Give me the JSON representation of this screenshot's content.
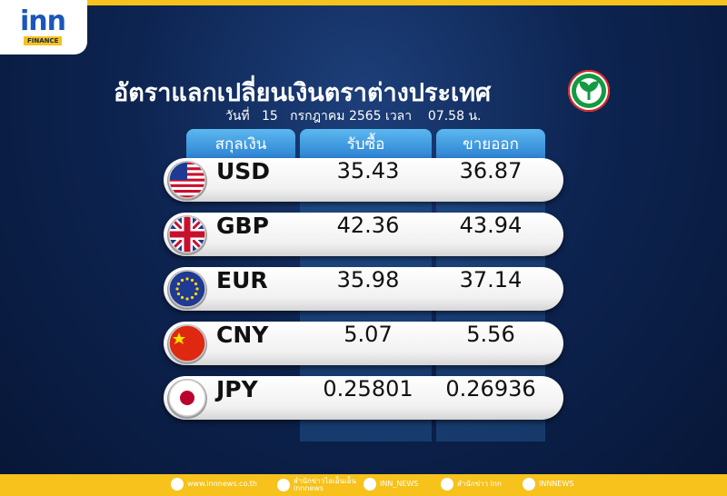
{
  "header": {
    "logo": "inn",
    "logo_sub": "FINANCE",
    "title": "อัตราแลกเปลี่ยนเงินตราต่างประเทศ",
    "date": "วันที่   15   กรกฎาคม 2565 เวลา    07.58 น."
  },
  "table": {
    "columns": [
      "สกุลเงิน",
      "รับซื้อ",
      "ขายออก"
    ],
    "rows": [
      [
        "USD",
        "35.43",
        "36.87"
      ],
      [
        "GBP",
        "42.36",
        "43.94"
      ],
      [
        "EUR",
        "35.98",
        "37.14"
      ],
      [
        "CNY",
        "5.07",
        "5.56"
      ],
      [
        "JPY",
        "0.25801",
        "0.26936"
      ]
    ]
  },
  "footer": [
    "www.innnews.co.th",
    "สำนักข่าวไอเอ็นเอ็น\ninnnews",
    "INN_NEWS",
    "สำนักข่าว inn",
    "INNNEWS"
  ]
}
